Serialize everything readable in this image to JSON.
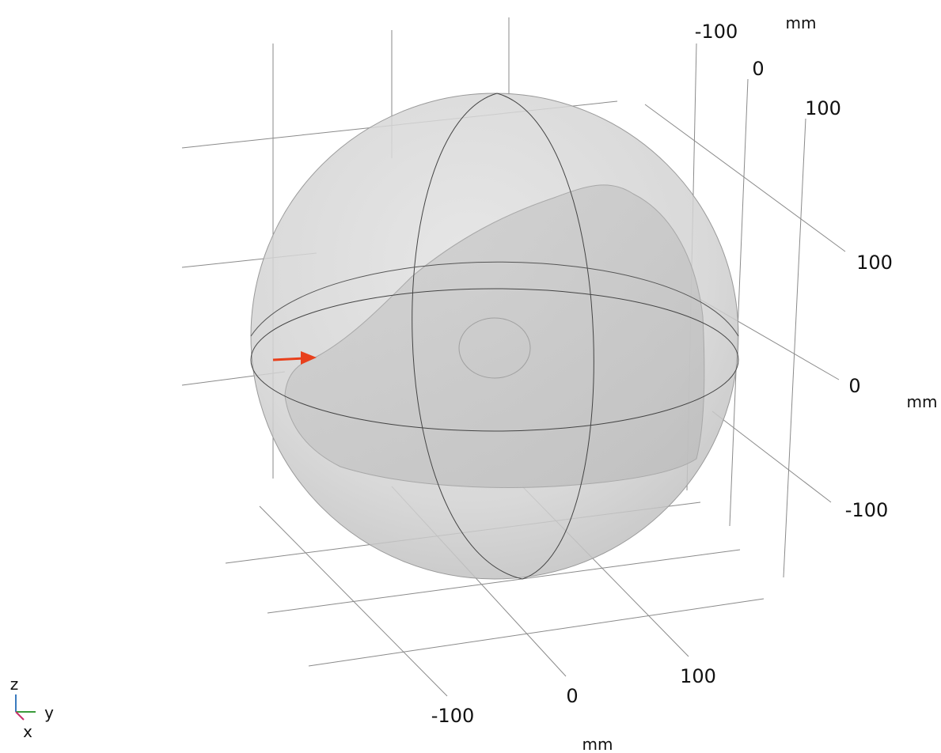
{
  "axes": {
    "top": {
      "ticks": [
        -100,
        0,
        100
      ],
      "unit": "mm"
    },
    "right": {
      "ticks": [
        100,
        0,
        -100
      ],
      "unit": "mm"
    },
    "bottom": {
      "ticks": [
        -100,
        0,
        100
      ],
      "unit": "mm"
    }
  },
  "triad": {
    "z": "z",
    "y": "y",
    "x": "x"
  }
}
